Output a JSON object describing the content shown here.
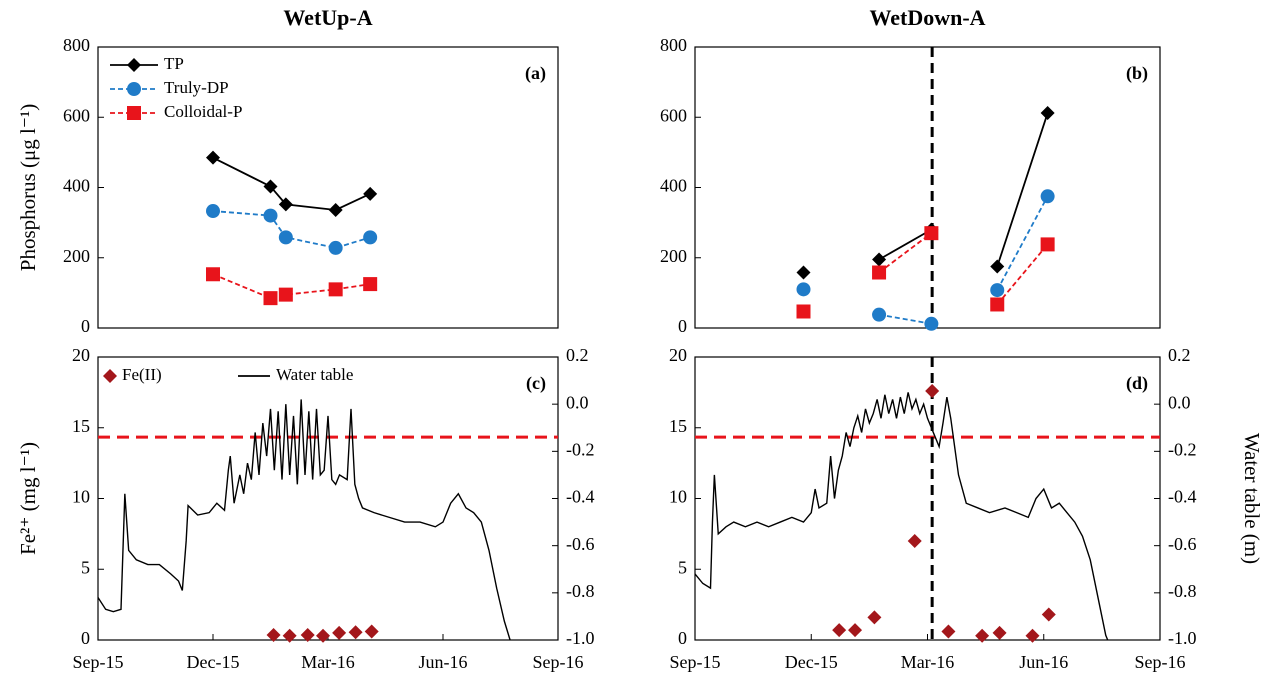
{
  "chart_data": [
    {
      "type": "line",
      "title": "WetUp-A",
      "panel_label": "(a)",
      "ylabel": "Phosphorus (μg l⁻¹)",
      "xlim": [
        0,
        12
      ],
      "ylim": [
        0,
        800
      ],
      "yticks": [
        0,
        200,
        400,
        600,
        800
      ],
      "legend": "upper left",
      "series": [
        {
          "name": "TP",
          "color": "#000000",
          "marker": "diamond",
          "dash": false,
          "x": [
            3.0,
            4.5,
            4.9,
            6.2,
            7.1
          ],
          "values": [
            485,
            403,
            352,
            336,
            382
          ]
        },
        {
          "name": "Truly-DP",
          "color": "#1f7bc8",
          "marker": "circle",
          "dash": true,
          "x": [
            3.0,
            4.5,
            4.9,
            6.2,
            7.1
          ],
          "values": [
            333,
            320,
            258,
            228,
            258
          ]
        },
        {
          "name": "Colloidal-P",
          "color": "#e8141b",
          "marker": "square",
          "dash": true,
          "x": [
            3.0,
            4.5,
            4.9,
            6.2,
            7.1
          ],
          "values": [
            153,
            85,
            95,
            110,
            125
          ]
        }
      ]
    },
    {
      "type": "line",
      "title": "WetDown-A",
      "panel_label": "(b)",
      "xlim": [
        0,
        12
      ],
      "ylim": [
        0,
        800
      ],
      "yticks": [
        0,
        200,
        400,
        600,
        800
      ],
      "vline": 6.12,
      "series": [
        {
          "color": "#000000",
          "marker": "diamond",
          "dash": false,
          "x": [
            2.8,
            null,
            4.75,
            6.1,
            null,
            7.8,
            9.1
          ],
          "values": [
            158,
            null,
            195,
            280,
            null,
            175,
            612
          ]
        },
        {
          "color": "#1f7bc8",
          "marker": "circle",
          "dash": true,
          "x": [
            2.8,
            null,
            4.75,
            6.1,
            null,
            7.8,
            9.1
          ],
          "values": [
            110,
            null,
            38,
            12,
            null,
            108,
            375
          ]
        },
        {
          "color": "#e8141b",
          "marker": "square",
          "dash": true,
          "x": [
            2.8,
            null,
            4.75,
            6.1,
            null,
            7.8,
            9.1
          ],
          "values": [
            47,
            null,
            158,
            270,
            null,
            67,
            238
          ]
        }
      ]
    },
    {
      "type": "line",
      "panel_label": "(c)",
      "ylabel": "Fe²⁺ (mg l⁻¹)",
      "xlim": [
        0,
        12
      ],
      "xticks": [
        {
          "value": 0,
          "label": "Sep-15"
        },
        {
          "value": 3,
          "label": "Dec-15"
        },
        {
          "value": 6,
          "label": "Mar-16"
        },
        {
          "value": 9,
          "label": "Jun-16"
        },
        {
          "value": 12,
          "label": "Sep-16"
        }
      ],
      "ylim": [
        0,
        20
      ],
      "yticks": [
        0,
        5,
        10,
        15,
        20
      ],
      "y2lim": [
        -1.0,
        0.2
      ],
      "y2ticks": [
        {
          "value": -1,
          "label": "-1.0"
        },
        -0.8,
        -0.6,
        -0.4,
        -0.2,
        {
          "value": 0,
          "label": "0.0"
        },
        0.2
      ],
      "hline_y2": -0.14,
      "legend": "upper left",
      "legend_layout": "row",
      "series": [
        {
          "name": "Fe(II)",
          "color": "#a3171b",
          "marker": "diamond",
          "line": false,
          "x": [
            4.58,
            5.0,
            5.47,
            5.87,
            6.29,
            6.72,
            7.14
          ],
          "values": [
            0.35,
            0.3,
            0.35,
            0.3,
            0.5,
            0.55,
            0.6
          ]
        },
        {
          "name": "Water table",
          "color": "#000000",
          "marker": "none",
          "axis": "y2",
          "x": [
            0,
            0.2,
            0.4,
            0.6,
            0.7,
            0.8,
            1.0,
            1.3,
            1.6,
            1.9,
            2.1,
            2.2,
            2.3,
            2.35,
            2.6,
            2.9,
            3.1,
            3.3,
            3.4,
            3.45,
            3.55,
            3.7,
            3.8,
            3.9,
            4.0,
            4.1,
            4.2,
            4.3,
            4.4,
            4.5,
            4.6,
            4.7,
            4.8,
            4.9,
            5.0,
            5.1,
            5.2,
            5.3,
            5.4,
            5.5,
            5.6,
            5.7,
            5.8,
            5.9,
            6.0,
            6.1,
            6.2,
            6.3,
            6.5,
            6.6,
            6.7,
            6.8,
            6.9,
            7.2,
            7.6,
            8.0,
            8.4,
            8.8,
            9.0,
            9.2,
            9.4,
            9.6,
            9.8,
            10.0,
            10.2,
            10.4,
            10.6,
            10.75
          ],
          "values": [
            -0.82,
            -0.87,
            -0.88,
            -0.87,
            -0.38,
            -0.62,
            -0.66,
            -0.68,
            -0.68,
            -0.72,
            -0.75,
            -0.79,
            -0.58,
            -0.43,
            -0.47,
            -0.46,
            -0.42,
            -0.45,
            -0.28,
            -0.22,
            -0.42,
            -0.3,
            -0.38,
            -0.25,
            -0.32,
            -0.12,
            -0.3,
            -0.08,
            -0.22,
            -0.02,
            -0.28,
            -0.03,
            -0.32,
            0.0,
            -0.3,
            -0.05,
            -0.34,
            0.02,
            -0.3,
            -0.03,
            -0.32,
            -0.02,
            -0.3,
            -0.28,
            -0.05,
            -0.32,
            -0.34,
            -0.3,
            -0.32,
            -0.02,
            -0.34,
            -0.4,
            -0.44,
            -0.46,
            -0.48,
            -0.5,
            -0.5,
            -0.52,
            -0.5,
            -0.42,
            -0.38,
            -0.44,
            -0.46,
            -0.5,
            -0.62,
            -0.78,
            -0.92,
            -1.0
          ]
        }
      ]
    },
    {
      "type": "line",
      "panel_label": "(d)",
      "y2label": "Water table (m)",
      "xlim": [
        0,
        12
      ],
      "xticks": [
        {
          "value": 0,
          "label": "Sep-15"
        },
        {
          "value": 3,
          "label": "Dec-15"
        },
        {
          "value": 6,
          "label": "Mar-16"
        },
        {
          "value": 9,
          "label": "Jun-16"
        },
        {
          "value": 12,
          "label": "Sep-16"
        }
      ],
      "ylim": [
        0,
        20
      ],
      "yticks": [
        0,
        5,
        10,
        15,
        20
      ],
      "y2lim": [
        -1.0,
        0.2
      ],
      "y2ticks": [
        {
          "value": -1,
          "label": "-1.0"
        },
        -0.8,
        -0.6,
        -0.4,
        -0.2,
        {
          "value": 0,
          "label": "0.0"
        },
        0.2
      ],
      "hline_y2": -0.14,
      "vline": 6.12,
      "series": [
        {
          "color": "#a3171b",
          "marker": "diamond",
          "line": false,
          "x": [
            3.72,
            4.13,
            4.63,
            5.67,
            6.12,
            6.54,
            7.41,
            7.86,
            8.71,
            9.13
          ],
          "values": [
            0.7,
            0.7,
            1.6,
            7,
            17.6,
            0.6,
            0.3,
            0.5,
            0.3,
            1.8
          ]
        },
        {
          "color": "#000000",
          "marker": "none",
          "axis": "y2",
          "x": [
            0,
            0.2,
            0.4,
            0.45,
            0.5,
            0.6,
            0.8,
            1.0,
            1.3,
            1.6,
            1.9,
            2.2,
            2.5,
            2.8,
            3.0,
            3.1,
            3.2,
            3.4,
            3.5,
            3.6,
            3.7,
            3.8,
            3.9,
            4.0,
            4.1,
            4.2,
            4.3,
            4.4,
            4.5,
            4.6,
            4.7,
            4.8,
            4.9,
            5.0,
            5.1,
            5.2,
            5.3,
            5.4,
            5.5,
            5.6,
            5.7,
            5.8,
            5.9,
            6.0,
            6.1,
            6.2,
            6.3,
            6.4,
            6.5,
            6.6,
            6.7,
            6.8,
            7.0,
            7.3,
            7.6,
            8.0,
            8.3,
            8.6,
            8.8,
            9.0,
            9.2,
            9.4,
            9.6,
            9.8,
            10.0,
            10.2,
            10.4,
            10.6,
            10.65
          ],
          "values": [
            -0.72,
            -0.76,
            -0.78,
            -0.5,
            -0.3,
            -0.55,
            -0.52,
            -0.5,
            -0.52,
            -0.5,
            -0.52,
            -0.5,
            -0.48,
            -0.5,
            -0.46,
            -0.36,
            -0.44,
            -0.42,
            -0.22,
            -0.4,
            -0.28,
            -0.22,
            -0.12,
            -0.18,
            -0.1,
            -0.05,
            -0.12,
            -0.02,
            -0.08,
            -0.04,
            0.02,
            -0.06,
            0.04,
            -0.04,
            0.02,
            -0.06,
            0.03,
            -0.04,
            0.05,
            -0.02,
            0.02,
            -0.04,
            0.0,
            -0.06,
            -0.1,
            -0.14,
            -0.18,
            -0.08,
            0.03,
            -0.06,
            -0.18,
            -0.3,
            -0.42,
            -0.44,
            -0.46,
            -0.44,
            -0.46,
            -0.48,
            -0.4,
            -0.36,
            -0.44,
            -0.42,
            -0.46,
            -0.5,
            -0.56,
            -0.66,
            -0.82,
            -0.98,
            -1.0
          ]
        }
      ]
    }
  ]
}
